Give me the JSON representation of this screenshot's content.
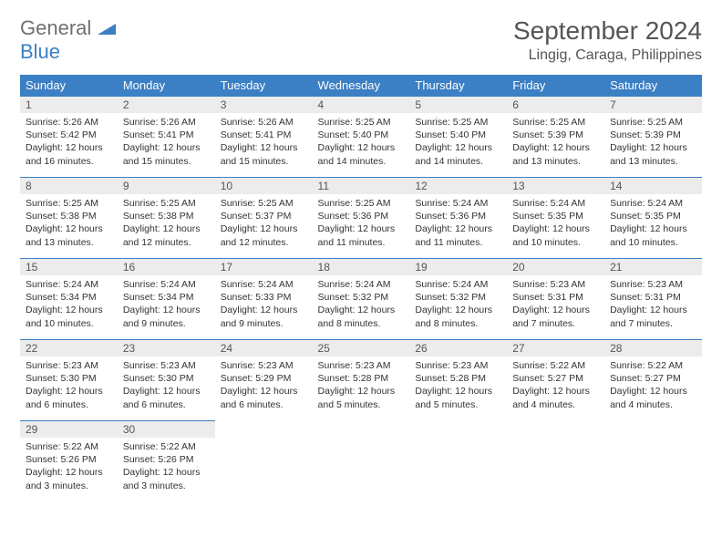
{
  "brand": {
    "part1": "General",
    "part2": "Blue"
  },
  "title": "September 2024",
  "location": "Lingig, Caraga, Philippines",
  "colors": {
    "header_bg": "#3b7fc4",
    "header_text": "#ffffff",
    "daynum_bg": "#ececec",
    "border": "#3b7fc4",
    "text": "#333333",
    "title_text": "#555555"
  },
  "weekdays": [
    "Sunday",
    "Monday",
    "Tuesday",
    "Wednesday",
    "Thursday",
    "Friday",
    "Saturday"
  ],
  "weeks": [
    [
      {
        "n": "1",
        "sr": "Sunrise: 5:26 AM",
        "ss": "Sunset: 5:42 PM",
        "d1": "Daylight: 12 hours",
        "d2": "and 16 minutes."
      },
      {
        "n": "2",
        "sr": "Sunrise: 5:26 AM",
        "ss": "Sunset: 5:41 PM",
        "d1": "Daylight: 12 hours",
        "d2": "and 15 minutes."
      },
      {
        "n": "3",
        "sr": "Sunrise: 5:26 AM",
        "ss": "Sunset: 5:41 PM",
        "d1": "Daylight: 12 hours",
        "d2": "and 15 minutes."
      },
      {
        "n": "4",
        "sr": "Sunrise: 5:25 AM",
        "ss": "Sunset: 5:40 PM",
        "d1": "Daylight: 12 hours",
        "d2": "and 14 minutes."
      },
      {
        "n": "5",
        "sr": "Sunrise: 5:25 AM",
        "ss": "Sunset: 5:40 PM",
        "d1": "Daylight: 12 hours",
        "d2": "and 14 minutes."
      },
      {
        "n": "6",
        "sr": "Sunrise: 5:25 AM",
        "ss": "Sunset: 5:39 PM",
        "d1": "Daylight: 12 hours",
        "d2": "and 13 minutes."
      },
      {
        "n": "7",
        "sr": "Sunrise: 5:25 AM",
        "ss": "Sunset: 5:39 PM",
        "d1": "Daylight: 12 hours",
        "d2": "and 13 minutes."
      }
    ],
    [
      {
        "n": "8",
        "sr": "Sunrise: 5:25 AM",
        "ss": "Sunset: 5:38 PM",
        "d1": "Daylight: 12 hours",
        "d2": "and 13 minutes."
      },
      {
        "n": "9",
        "sr": "Sunrise: 5:25 AM",
        "ss": "Sunset: 5:38 PM",
        "d1": "Daylight: 12 hours",
        "d2": "and 12 minutes."
      },
      {
        "n": "10",
        "sr": "Sunrise: 5:25 AM",
        "ss": "Sunset: 5:37 PM",
        "d1": "Daylight: 12 hours",
        "d2": "and 12 minutes."
      },
      {
        "n": "11",
        "sr": "Sunrise: 5:25 AM",
        "ss": "Sunset: 5:36 PM",
        "d1": "Daylight: 12 hours",
        "d2": "and 11 minutes."
      },
      {
        "n": "12",
        "sr": "Sunrise: 5:24 AM",
        "ss": "Sunset: 5:36 PM",
        "d1": "Daylight: 12 hours",
        "d2": "and 11 minutes."
      },
      {
        "n": "13",
        "sr": "Sunrise: 5:24 AM",
        "ss": "Sunset: 5:35 PM",
        "d1": "Daylight: 12 hours",
        "d2": "and 10 minutes."
      },
      {
        "n": "14",
        "sr": "Sunrise: 5:24 AM",
        "ss": "Sunset: 5:35 PM",
        "d1": "Daylight: 12 hours",
        "d2": "and 10 minutes."
      }
    ],
    [
      {
        "n": "15",
        "sr": "Sunrise: 5:24 AM",
        "ss": "Sunset: 5:34 PM",
        "d1": "Daylight: 12 hours",
        "d2": "and 10 minutes."
      },
      {
        "n": "16",
        "sr": "Sunrise: 5:24 AM",
        "ss": "Sunset: 5:34 PM",
        "d1": "Daylight: 12 hours",
        "d2": "and 9 minutes."
      },
      {
        "n": "17",
        "sr": "Sunrise: 5:24 AM",
        "ss": "Sunset: 5:33 PM",
        "d1": "Daylight: 12 hours",
        "d2": "and 9 minutes."
      },
      {
        "n": "18",
        "sr": "Sunrise: 5:24 AM",
        "ss": "Sunset: 5:32 PM",
        "d1": "Daylight: 12 hours",
        "d2": "and 8 minutes."
      },
      {
        "n": "19",
        "sr": "Sunrise: 5:24 AM",
        "ss": "Sunset: 5:32 PM",
        "d1": "Daylight: 12 hours",
        "d2": "and 8 minutes."
      },
      {
        "n": "20",
        "sr": "Sunrise: 5:23 AM",
        "ss": "Sunset: 5:31 PM",
        "d1": "Daylight: 12 hours",
        "d2": "and 7 minutes."
      },
      {
        "n": "21",
        "sr": "Sunrise: 5:23 AM",
        "ss": "Sunset: 5:31 PM",
        "d1": "Daylight: 12 hours",
        "d2": "and 7 minutes."
      }
    ],
    [
      {
        "n": "22",
        "sr": "Sunrise: 5:23 AM",
        "ss": "Sunset: 5:30 PM",
        "d1": "Daylight: 12 hours",
        "d2": "and 6 minutes."
      },
      {
        "n": "23",
        "sr": "Sunrise: 5:23 AM",
        "ss": "Sunset: 5:30 PM",
        "d1": "Daylight: 12 hours",
        "d2": "and 6 minutes."
      },
      {
        "n": "24",
        "sr": "Sunrise: 5:23 AM",
        "ss": "Sunset: 5:29 PM",
        "d1": "Daylight: 12 hours",
        "d2": "and 6 minutes."
      },
      {
        "n": "25",
        "sr": "Sunrise: 5:23 AM",
        "ss": "Sunset: 5:28 PM",
        "d1": "Daylight: 12 hours",
        "d2": "and 5 minutes."
      },
      {
        "n": "26",
        "sr": "Sunrise: 5:23 AM",
        "ss": "Sunset: 5:28 PM",
        "d1": "Daylight: 12 hours",
        "d2": "and 5 minutes."
      },
      {
        "n": "27",
        "sr": "Sunrise: 5:22 AM",
        "ss": "Sunset: 5:27 PM",
        "d1": "Daylight: 12 hours",
        "d2": "and 4 minutes."
      },
      {
        "n": "28",
        "sr": "Sunrise: 5:22 AM",
        "ss": "Sunset: 5:27 PM",
        "d1": "Daylight: 12 hours",
        "d2": "and 4 minutes."
      }
    ],
    [
      {
        "n": "29",
        "sr": "Sunrise: 5:22 AM",
        "ss": "Sunset: 5:26 PM",
        "d1": "Daylight: 12 hours",
        "d2": "and 3 minutes."
      },
      {
        "n": "30",
        "sr": "Sunrise: 5:22 AM",
        "ss": "Sunset: 5:26 PM",
        "d1": "Daylight: 12 hours",
        "d2": "and 3 minutes."
      },
      null,
      null,
      null,
      null,
      null
    ]
  ]
}
